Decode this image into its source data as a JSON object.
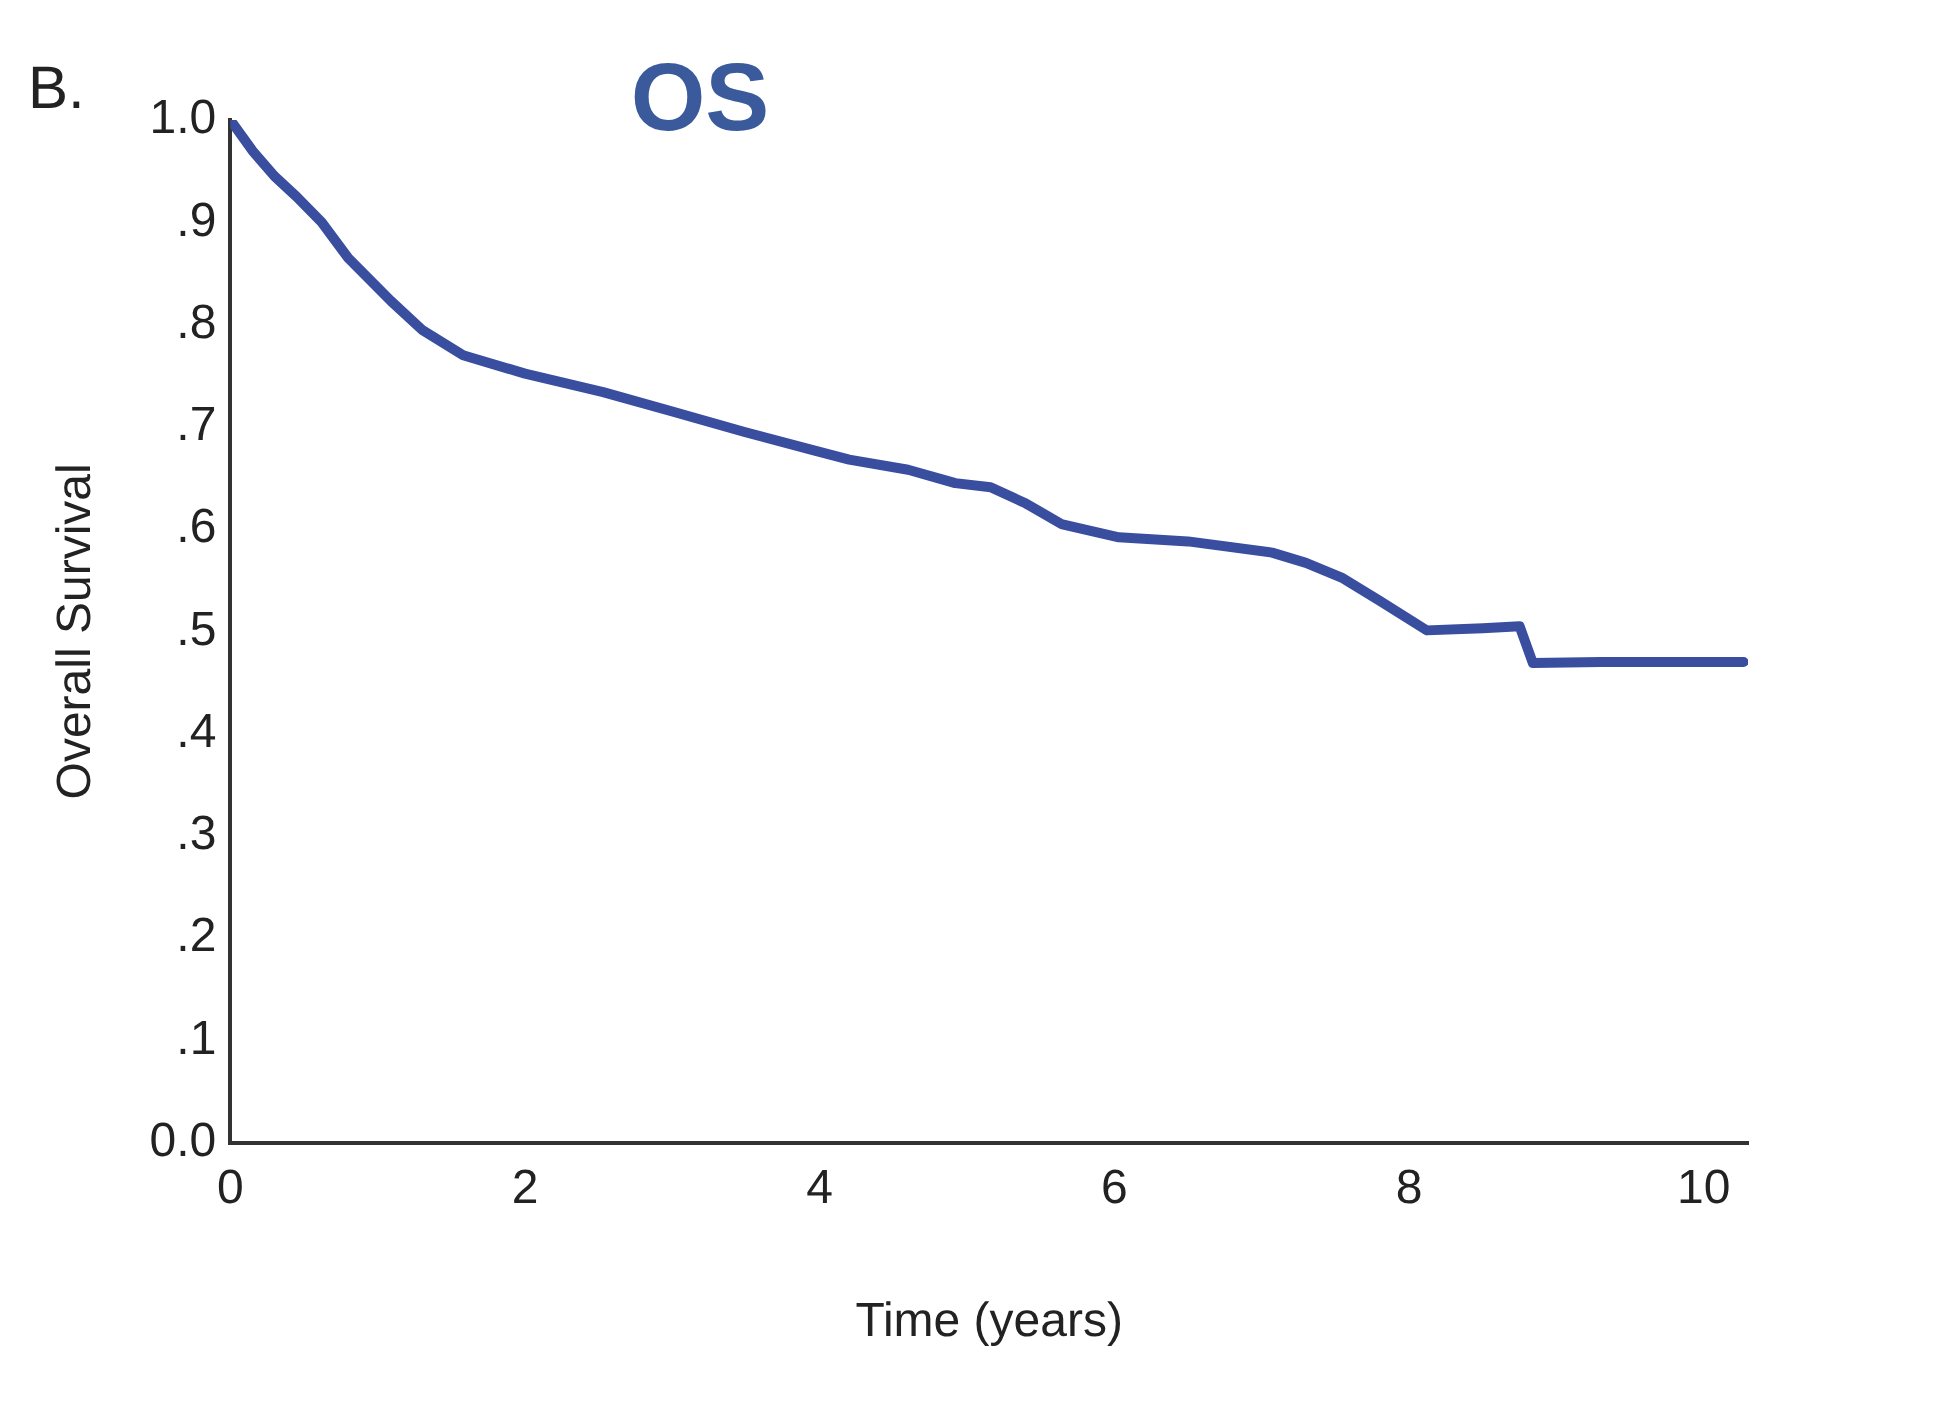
{
  "chart_data": {
    "type": "line",
    "title": "OS",
    "xlabel": "Time (years)",
    "ylabel": "Overall Survival",
    "annotations": [
      "B."
    ],
    "x": [
      0,
      0.15,
      0.3,
      0.45,
      0.62,
      0.8,
      1.09,
      1.3,
      1.58,
      2.0,
      2.53,
      3.0,
      3.49,
      3.96,
      4.2,
      4.6,
      4.92,
      5.16,
      5.4,
      5.64,
      6.03,
      6.5,
      7.07,
      7.3,
      7.55,
      7.8,
      8.12,
      8.5,
      8.75,
      8.84,
      9.3,
      10.27
    ],
    "series": [
      {
        "color": "#3a4ea0",
        "values": [
          1.0,
          0.97,
          0.945,
          0.925,
          0.9,
          0.865,
          0.823,
          0.795,
          0.77,
          0.752,
          0.734,
          0.715,
          0.695,
          0.677,
          0.668,
          0.658,
          0.645,
          0.641,
          0.625,
          0.605,
          0.592,
          0.588,
          0.577,
          0.567,
          0.552,
          0.53,
          0.501,
          0.503,
          0.505,
          0.469,
          0.47,
          0.47
        ]
      }
    ],
    "xlim": [
      0,
      10.3
    ],
    "xticks": [
      0,
      2,
      4,
      6,
      8,
      10
    ],
    "ylim": [
      0,
      1
    ],
    "yticks": [
      {
        "value": 0,
        "label": "0.0"
      },
      {
        "value": 0.1,
        "label": ".1"
      },
      {
        "value": 0.2,
        "label": ".2"
      },
      {
        "value": 0.3,
        "label": ".3"
      },
      {
        "value": 0.4,
        "label": ".4"
      },
      {
        "value": 0.5,
        "label": ".5"
      },
      {
        "value": 0.6,
        "label": ".6"
      },
      {
        "value": 0.7,
        "label": ".7"
      },
      {
        "value": 0.8,
        "label": ".8"
      },
      {
        "value": 0.9,
        "label": ".9"
      },
      {
        "value": 1,
        "label": "1.0"
      }
    ],
    "grid": false,
    "legend": false,
    "marker": "none",
    "line_style": "solid"
  }
}
